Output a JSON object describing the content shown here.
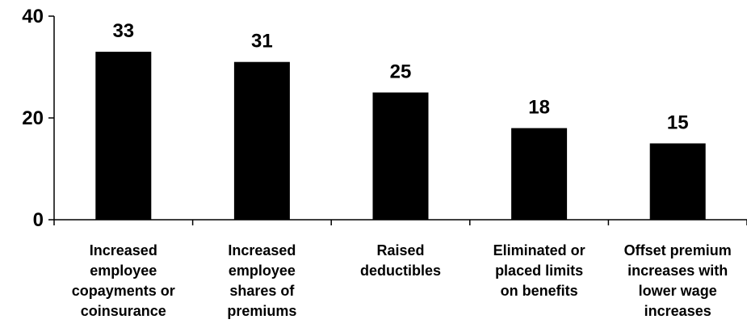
{
  "chart_data": {
    "type": "bar",
    "title": "",
    "xlabel": "",
    "ylabel": "",
    "categories": [
      [
        "Increased",
        "employee",
        "copayments or",
        "coinsurance"
      ],
      [
        "Increased",
        "employee",
        "shares of",
        "premiums"
      ],
      [
        "Raised",
        "deductibles"
      ],
      [
        "Eliminated or",
        "placed limits",
        "on benefits"
      ],
      [
        "Offset premium",
        "increases with",
        "lower wage",
        "increases"
      ]
    ],
    "values": [
      33,
      31,
      25,
      18,
      15
    ],
    "data_labels": [
      "33",
      "31",
      "25",
      "18",
      "15"
    ],
    "ylim": [
      0,
      40
    ],
    "yticks": [
      0,
      20,
      40
    ],
    "ytick_labels": [
      "0",
      "20",
      "40"
    ],
    "grid": false,
    "bar_color": "#000000"
  }
}
